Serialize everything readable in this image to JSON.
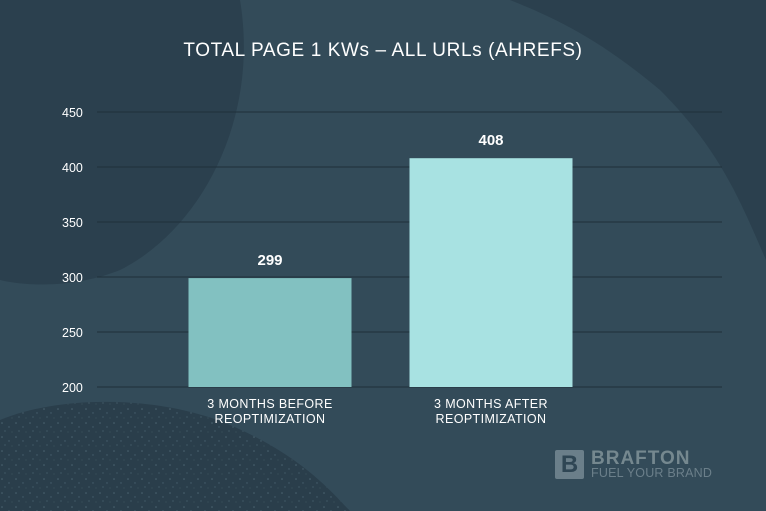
{
  "chart_data": {
    "type": "bar",
    "title": "TOTAL PAGE 1 KWs – ALL URLs (AHREFS)",
    "categories": [
      [
        "3 MONTHS BEFORE",
        "REOPTIMIZATION"
      ],
      [
        "3 MONTHS AFTER",
        "REOPTIMIZATION"
      ]
    ],
    "values": [
      299,
      408
    ],
    "value_labels": [
      "299",
      "408"
    ],
    "ylim": [
      200,
      450
    ],
    "yticks": [
      200,
      250,
      300,
      350,
      400,
      450
    ],
    "grid": true,
    "colors": [
      "#82c1c1",
      "#a8e2e2"
    ]
  },
  "brand": {
    "mark": "B",
    "name": "BRAFTON",
    "tagline": "FUEL YOUR BRAND"
  },
  "theme": {
    "background": "#2f4654",
    "blob": "#354e5c",
    "dark_blob": "#2a3f4d",
    "grid": "#1f2f39",
    "text": "#ffffff"
  }
}
